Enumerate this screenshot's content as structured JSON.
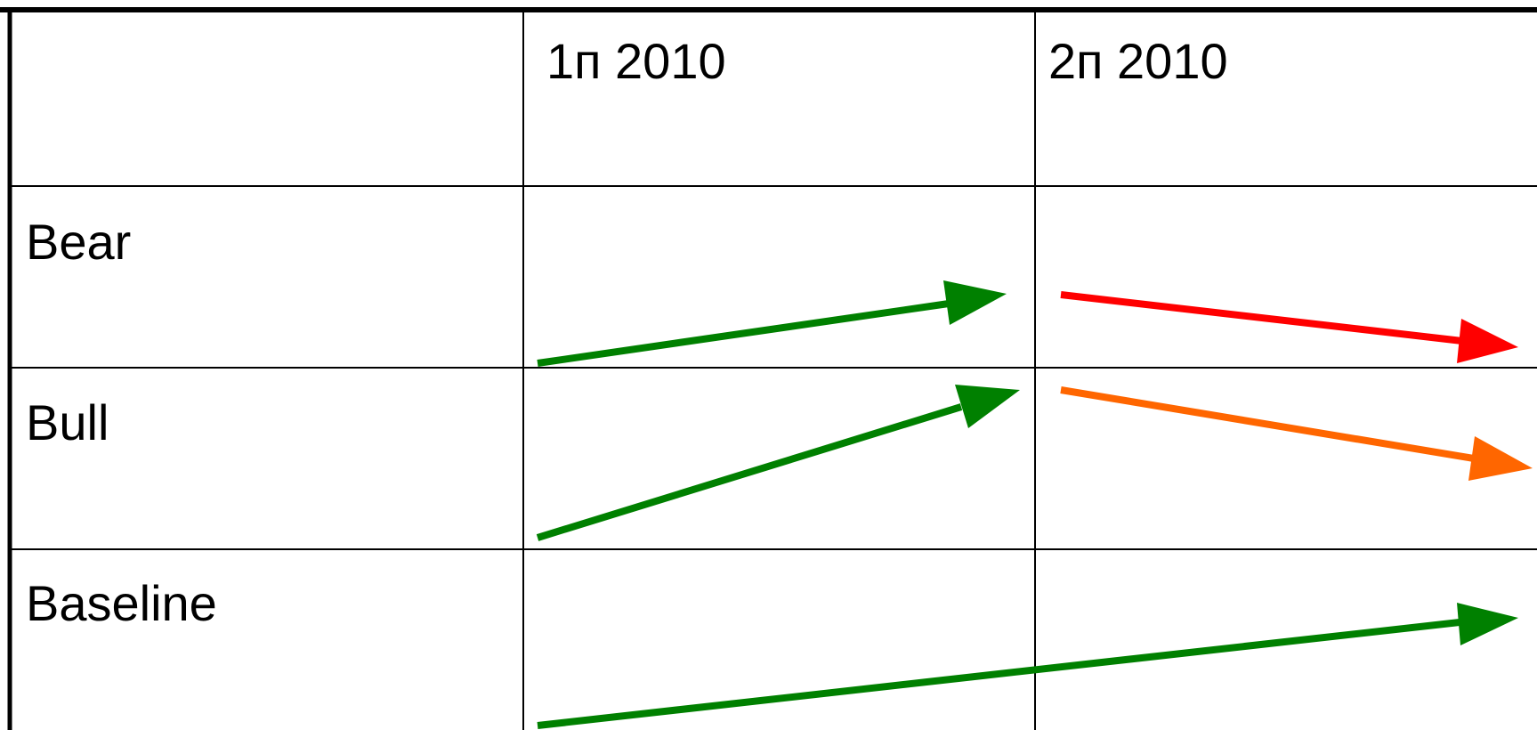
{
  "table": {
    "headers": [
      "",
      "1п 2010",
      "2п 2010"
    ],
    "rows": [
      {
        "label": "Bear"
      },
      {
        "label": "Bull"
      },
      {
        "label": "Baseline"
      }
    ]
  },
  "arrows": [
    {
      "row": "Bear",
      "period": "1п 2010",
      "direction": "up",
      "color": "#008000"
    },
    {
      "row": "Bear",
      "period": "2п 2010",
      "direction": "down",
      "color": "#ff0000"
    },
    {
      "row": "Bull",
      "period": "1п 2010",
      "direction": "up",
      "color": "#008000"
    },
    {
      "row": "Bull",
      "period": "2п 2010",
      "direction": "down",
      "color": "#ff6600"
    },
    {
      "row": "Baseline",
      "period": "1п 2010 – 2п 2010",
      "direction": "up",
      "color": "#008000"
    }
  ]
}
